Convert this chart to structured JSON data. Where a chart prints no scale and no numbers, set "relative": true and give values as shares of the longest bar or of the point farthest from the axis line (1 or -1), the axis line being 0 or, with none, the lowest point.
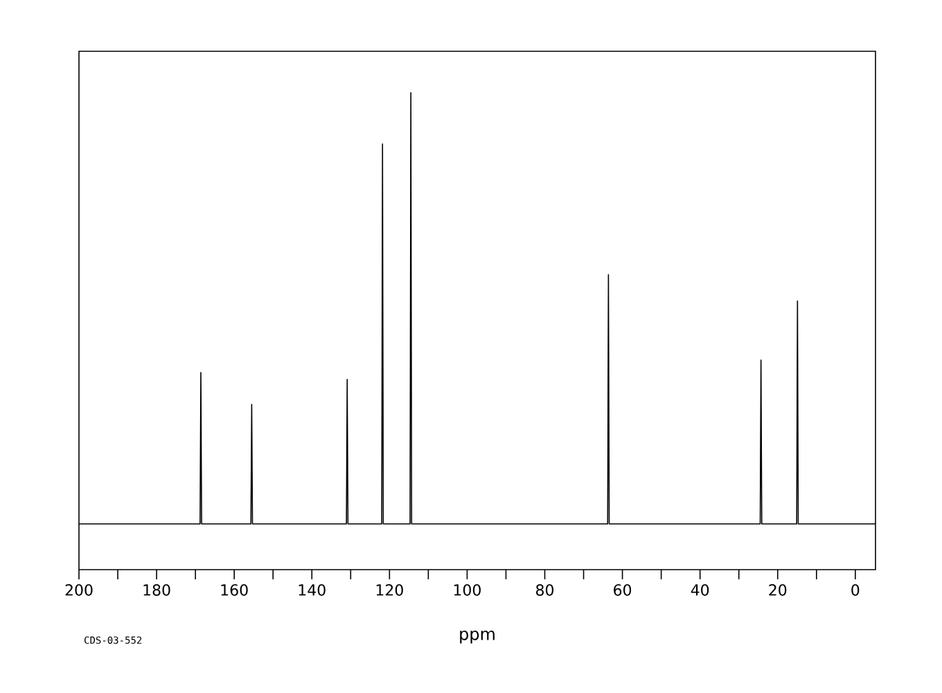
{
  "chart_data": {
    "type": "line",
    "relative": true,
    "xlabel": "ppm",
    "tick_labels": "x",
    "annotations": [
      "CDS-03-552"
    ],
    "xlim": [
      200,
      -5.2
    ],
    "xticks": [
      200,
      180,
      160,
      140,
      120,
      100,
      80,
      60,
      40,
      20,
      0
    ],
    "series": [
      {
        "color": "#000000",
        "x": [
          200,
          168.8,
          168.6,
          168.4,
          155.7,
          155.5,
          155.3,
          131.1,
          130.9,
          130.7,
          122.0,
          121.8,
          121.6,
          114.7,
          114.5,
          114.3,
          63.8,
          63.6,
          63.4,
          24.5,
          24.3,
          24.1,
          15.1,
          14.9,
          14.7,
          -5.2
        ],
        "values": [
          0,
          0,
          0.351,
          0,
          0,
          0.277,
          0,
          0,
          0.335,
          0,
          0,
          0.881,
          0,
          0,
          1,
          0,
          0,
          0.578,
          0,
          0,
          0.38,
          0,
          0,
          0.517,
          0,
          0
        ]
      }
    ]
  }
}
